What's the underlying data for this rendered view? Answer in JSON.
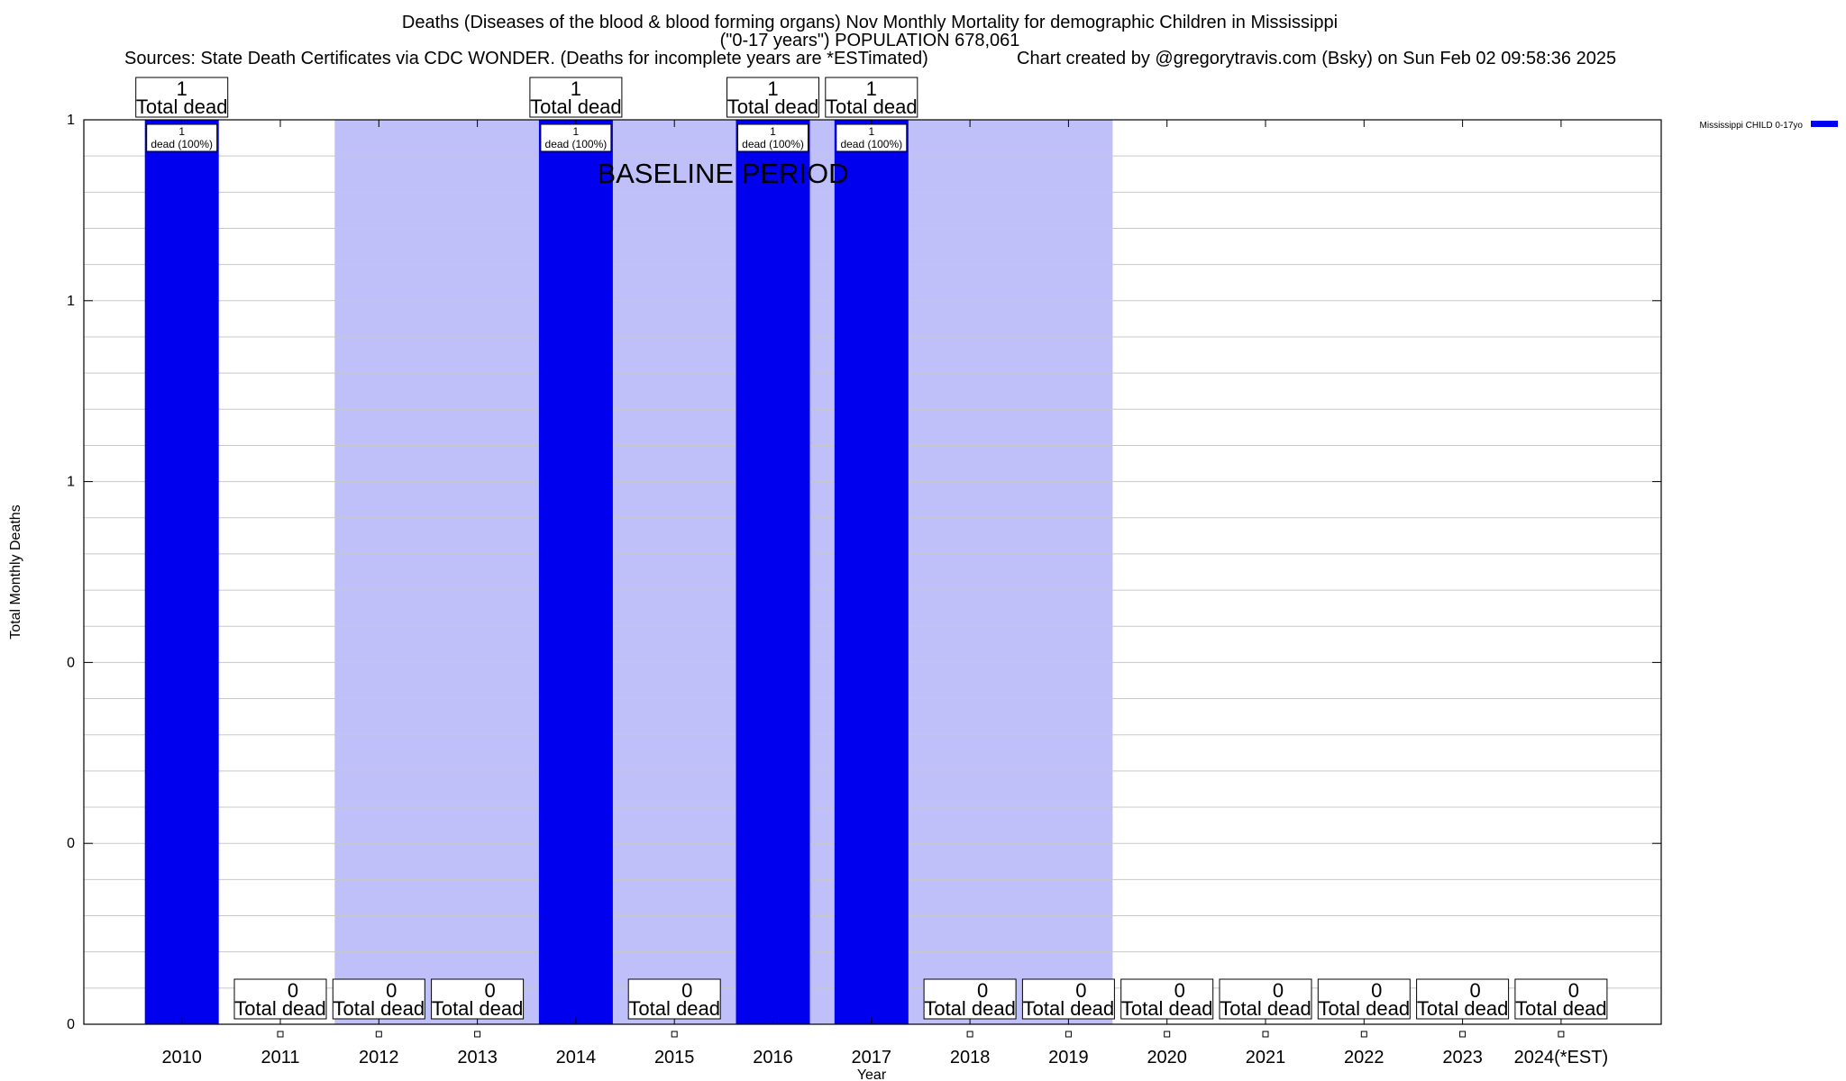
{
  "chart_data": {
    "type": "bar",
    "title": "Deaths (Diseases of the blood & blood forming organs) Nov Monthly Mortality for demographic Children in Mississippi",
    "subtitle": "(\"0-17 years\") POPULATION 678,061",
    "source": "Sources: State Death Certificates via CDC WONDER. (Deaths for incomplete years are *ESTimated)",
    "credit": "Chart created by @gregorytravis.com (Bsky) on Sun Feb 02 09:58:36 2025",
    "xlabel": "Year",
    "ylabel": "Total Monthly Deaths",
    "ylim": [
      0,
      1
    ],
    "y_tick_labels": [
      "0",
      "0",
      "0",
      "1",
      "1",
      "1"
    ],
    "grid": true,
    "legend": {
      "placement": "top-right",
      "entry": "Mississippi CHILD 0-17yo"
    },
    "baseline_annotation": "BASELINE PERIOD",
    "baseline_years": [
      "2012",
      "2019"
    ],
    "categories": [
      "2010",
      "2011",
      "2012",
      "2013",
      "2014",
      "2015",
      "2016",
      "2017",
      "2018",
      "2019",
      "2020",
      "2021",
      "2022",
      "2023",
      "2024(*EST)"
    ],
    "series": [
      {
        "name": "Mississippi CHILD 0-17yo",
        "color": "#0000ee",
        "values": [
          1,
          0,
          0,
          0,
          1,
          0,
          1,
          1,
          0,
          0,
          0,
          0,
          0,
          0,
          0
        ]
      }
    ],
    "total_label": "Total dead",
    "bar_label": "dead (100%)"
  },
  "colors": {
    "bar": "#0000ee",
    "baseline_band": "#bfbffa",
    "grid": "#c8c8c8"
  }
}
